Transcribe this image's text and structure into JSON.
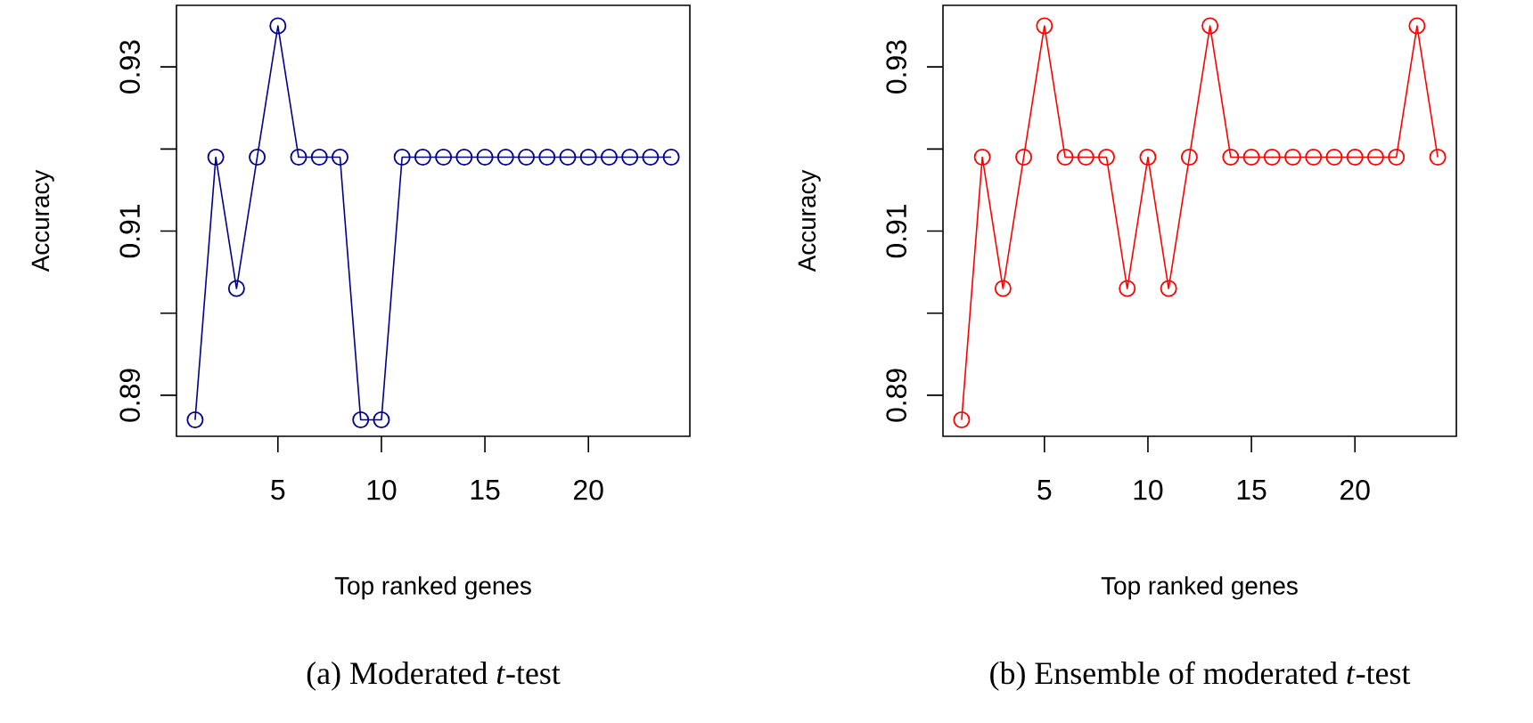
{
  "chart_data": [
    {
      "type": "line",
      "title": "(a) Moderated *t*-test",
      "xlabel": "Top ranked genes",
      "ylabel": "Accuracy",
      "x": [
        1,
        2,
        3,
        4,
        5,
        6,
        7,
        8,
        9,
        10,
        11,
        12,
        13,
        14,
        15,
        16,
        17,
        18,
        19,
        20,
        21,
        22,
        23,
        24
      ],
      "series": [
        {
          "color": "#00008b",
          "values": [
            0.887,
            0.919,
            0.903,
            0.919,
            0.935,
            0.919,
            0.919,
            0.919,
            0.887,
            0.887,
            0.919,
            0.919,
            0.919,
            0.919,
            0.919,
            0.919,
            0.919,
            0.919,
            0.919,
            0.919,
            0.919,
            0.919,
            0.919,
            0.919
          ]
        }
      ],
      "xlim": [
        0.1,
        24.9
      ],
      "ylim": [
        0.885,
        0.9375
      ],
      "xticks": [
        5,
        10,
        15,
        20
      ],
      "yticks": [
        0.89,
        0.91,
        0.93
      ],
      "marker": "circle",
      "line_style": "solid"
    },
    {
      "type": "line",
      "title": "(b) Ensemble of moderated *t*-test",
      "xlabel": "Top ranked genes",
      "ylabel": "Accuracy",
      "x": [
        1,
        2,
        3,
        4,
        5,
        6,
        7,
        8,
        9,
        10,
        11,
        12,
        13,
        14,
        15,
        16,
        17,
        18,
        19,
        20,
        21,
        22,
        23,
        24
      ],
      "series": [
        {
          "color": "#ff0000",
          "values": [
            0.887,
            0.919,
            0.903,
            0.919,
            0.935,
            0.919,
            0.919,
            0.919,
            0.903,
            0.919,
            0.903,
            0.919,
            0.935,
            0.919,
            0.919,
            0.919,
            0.919,
            0.919,
            0.919,
            0.919,
            0.919,
            0.919,
            0.935,
            0.919
          ]
        }
      ],
      "xlim": [
        0.1,
        24.9
      ],
      "ylim": [
        0.885,
        0.9375
      ],
      "xticks": [
        5,
        10,
        15,
        20
      ],
      "yticks": [
        0.89,
        0.91,
        0.93
      ],
      "marker": "circle",
      "line_style": "solid"
    }
  ]
}
